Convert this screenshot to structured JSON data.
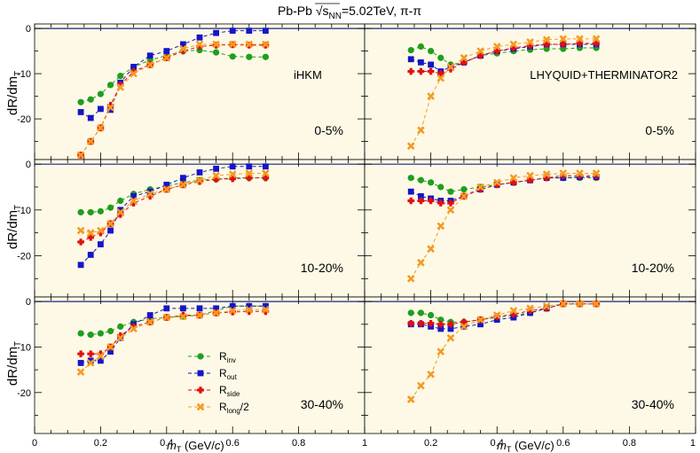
{
  "title_prefix": "Pb-Pb ",
  "title_root": "s",
  "title_root_sub": "NN",
  "title_suffix": "=5.02TeV, π-π",
  "ylabel": "dR/dm",
  "ylabel_sub": "T",
  "xlabel": "m",
  "xlabel_sub": "T",
  "xlabel_unit": " (GeV/",
  "xlabel_unit_c": "c",
  "xlabel_unit_close": ")",
  "x_ticks_left": [
    "0",
    "0.2",
    "0.4",
    "0.6",
    "0.8"
  ],
  "x_ticks_right": [
    "1",
    "0.2",
    "0.4",
    "0.6",
    "0.8",
    "1"
  ],
  "legend": [
    {
      "key": "inv",
      "base": "R",
      "sub": "inv",
      "tail": "",
      "color": "#1f9e1f",
      "marker": "circle"
    },
    {
      "key": "out",
      "base": "R",
      "sub": "out",
      "tail": "",
      "color": "#1515c8",
      "marker": "square"
    },
    {
      "key": "side",
      "base": "R",
      "sub": "side",
      "tail": "",
      "color": "#e01010",
      "marker": "cross"
    },
    {
      "key": "long",
      "base": "R",
      "sub": "long",
      "tail": "/2",
      "color": "#f59a23",
      "marker": "x"
    }
  ],
  "chart_data": [
    {
      "type": "scatter",
      "model": "iHKM",
      "centrality": "0-5%",
      "xlim": [
        0,
        1
      ],
      "ylim": [
        -29,
        1
      ],
      "yticks": [
        0,
        -10,
        -20
      ],
      "x": [
        0.14,
        0.17,
        0.2,
        0.23,
        0.26,
        0.3,
        0.35,
        0.4,
        0.45,
        0.5,
        0.55,
        0.6,
        0.65,
        0.7
      ],
      "series": [
        {
          "name": "R_inv",
          "values": [
            -16.3,
            -15.7,
            -14.5,
            -12.5,
            -10.5,
            -8.5,
            -7.0,
            -6.0,
            -5.0,
            -4.8,
            -5.3,
            -6.2,
            -6.3,
            -6.3
          ]
        },
        {
          "name": "R_out",
          "values": [
            -18.5,
            -19.8,
            -17.8,
            -18.0,
            -12.0,
            -8.5,
            -6.0,
            -5.0,
            -3.5,
            -2.0,
            -1.0,
            -0.5,
            -0.5,
            -0.5
          ]
        },
        {
          "name": "R_side",
          "values": [
            -28.0,
            -25.0,
            -22.0,
            -17.0,
            -12.5,
            -9.5,
            -8.0,
            -6.5,
            -5.0,
            -4.0,
            -3.7,
            -3.6,
            -3.7,
            -3.7
          ]
        },
        {
          "name": "R_long/2",
          "values": [
            -28.0,
            -25.0,
            -22.0,
            -17.5,
            -13.0,
            -10.0,
            -8.0,
            -6.5,
            -4.5,
            -3.5,
            -3.5,
            -3.5,
            -3.5,
            -3.5
          ]
        }
      ]
    },
    {
      "type": "scatter",
      "model": "LHYQUID+THERMINATOR2",
      "centrality": "0-5%",
      "xlim": [
        0,
        1
      ],
      "ylim": [
        -29,
        1
      ],
      "yticks": [],
      "x": [
        0.14,
        0.17,
        0.2,
        0.23,
        0.26,
        0.3,
        0.35,
        0.4,
        0.45,
        0.5,
        0.55,
        0.6,
        0.65,
        0.7
      ],
      "series": [
        {
          "name": "R_inv",
          "values": [
            -4.8,
            -4.0,
            -5.0,
            -6.5,
            -8.0,
            -7.5,
            -6.0,
            -5.5,
            -5.0,
            -4.7,
            -4.5,
            -4.5,
            -4.3,
            -4.3
          ]
        },
        {
          "name": "R_out",
          "values": [
            -6.8,
            -7.5,
            -8.0,
            -9.5,
            -8.5,
            -7.5,
            -6.0,
            -5.0,
            -4.5,
            -4.0,
            -3.5,
            -3.5,
            -3.5,
            -3.5
          ]
        },
        {
          "name": "R_side",
          "values": [
            -9.5,
            -9.5,
            -9.5,
            -10.0,
            -9.0,
            -7.5,
            -6.0,
            -5.0,
            -4.3,
            -3.8,
            -3.5,
            -3.5,
            -3.3,
            -3.3
          ]
        },
        {
          "name": "R_long/2",
          "values": [
            -26.0,
            -22.5,
            -15.0,
            -11.0,
            -8.5,
            -6.5,
            -5.0,
            -4.0,
            -3.5,
            -3.0,
            -2.5,
            -2.3,
            -2.3,
            -2.3
          ]
        }
      ]
    },
    {
      "type": "scatter",
      "centrality": "10-20%",
      "xlim": [
        0,
        1
      ],
      "ylim": [
        -29,
        1
      ],
      "yticks": [
        0,
        -10,
        -20
      ],
      "x": [
        0.14,
        0.17,
        0.2,
        0.23,
        0.26,
        0.3,
        0.35,
        0.4,
        0.45,
        0.5,
        0.55,
        0.6,
        0.65,
        0.7
      ],
      "series": [
        {
          "name": "R_inv",
          "values": [
            -10.5,
            -10.5,
            -10.3,
            -9.5,
            -8.0,
            -6.5,
            -5.5,
            -4.8,
            -4.0,
            -3.5,
            -3.3,
            -3.0,
            -3.0,
            -3.0
          ]
        },
        {
          "name": "R_out",
          "values": [
            -22.0,
            -19.8,
            -17.5,
            -14.5,
            -10.0,
            -7.0,
            -6.0,
            -4.5,
            -3.0,
            -1.8,
            -1.0,
            -0.5,
            -0.5,
            -0.5
          ]
        },
        {
          "name": "R_side",
          "values": [
            -17.0,
            -16.0,
            -15.0,
            -13.0,
            -11.0,
            -8.5,
            -7.0,
            -5.5,
            -4.5,
            -3.8,
            -3.3,
            -3.2,
            -3.0,
            -3.0
          ]
        },
        {
          "name": "R_long/2",
          "values": [
            -14.5,
            -15.0,
            -14.5,
            -13.0,
            -10.5,
            -8.0,
            -6.5,
            -5.5,
            -4.5,
            -3.5,
            -2.5,
            -2.2,
            -2.0,
            -2.0
          ]
        }
      ]
    },
    {
      "type": "scatter",
      "centrality": "10-20%",
      "xlim": [
        0,
        1
      ],
      "ylim": [
        -29,
        1
      ],
      "yticks": [],
      "x": [
        0.14,
        0.17,
        0.2,
        0.23,
        0.26,
        0.3,
        0.35,
        0.4,
        0.45,
        0.5,
        0.55,
        0.6,
        0.65,
        0.7
      ],
      "series": [
        {
          "name": "R_inv",
          "values": [
            -3.0,
            -3.5,
            -4.0,
            -5.0,
            -6.0,
            -5.5,
            -5.0,
            -4.5,
            -4.0,
            -3.5,
            -3.0,
            -3.0,
            -3.0,
            -3.0
          ]
        },
        {
          "name": "R_out",
          "values": [
            -6.0,
            -7.0,
            -7.5,
            -8.0,
            -8.0,
            -7.0,
            -5.5,
            -4.5,
            -4.0,
            -3.5,
            -3.0,
            -3.0,
            -2.8,
            -2.8
          ]
        },
        {
          "name": "R_side",
          "values": [
            -8.0,
            -8.0,
            -8.0,
            -8.5,
            -8.5,
            -7.0,
            -5.5,
            -4.5,
            -4.0,
            -3.5,
            -3.0,
            -2.5,
            -2.5,
            -2.5
          ]
        },
        {
          "name": "R_long/2",
          "values": [
            -25.0,
            -21.5,
            -18.5,
            -13.5,
            -10.0,
            -7.0,
            -5.0,
            -4.0,
            -3.0,
            -2.5,
            -2.2,
            -2.0,
            -2.0,
            -2.0
          ]
        }
      ]
    },
    {
      "type": "scatter",
      "centrality": "30-40%",
      "xlim": [
        0,
        1
      ],
      "ylim": [
        -29,
        1
      ],
      "yticks": [
        0,
        -10,
        -20
      ],
      "x": [
        0.14,
        0.17,
        0.2,
        0.23,
        0.26,
        0.3,
        0.35,
        0.4,
        0.45,
        0.5,
        0.55,
        0.6,
        0.65,
        0.7
      ],
      "series": [
        {
          "name": "R_inv",
          "values": [
            -7.0,
            -7.3,
            -7.0,
            -6.5,
            -5.5,
            -4.5,
            -3.8,
            -3.5,
            -3.3,
            -3.0,
            -2.0,
            -1.0,
            -1.0,
            -1.0
          ]
        },
        {
          "name": "R_out",
          "values": [
            -13.5,
            -13.0,
            -13.0,
            -11.0,
            -8.0,
            -5.0,
            -3.0,
            -1.5,
            -1.5,
            -1.5,
            -1.5,
            -1.0,
            -1.0,
            -1.0
          ]
        },
        {
          "name": "R_side",
          "values": [
            -11.5,
            -11.5,
            -11.5,
            -10.0,
            -7.5,
            -5.5,
            -4.5,
            -3.5,
            -3.0,
            -3.0,
            -2.5,
            -2.3,
            -2.2,
            -2.2
          ]
        },
        {
          "name": "R_long/2",
          "values": [
            -15.5,
            -13.5,
            -12.0,
            -10.0,
            -8.0,
            -6.0,
            -4.5,
            -3.5,
            -3.3,
            -3.0,
            -2.5,
            -2.0,
            -1.8,
            -1.8
          ]
        }
      ]
    },
    {
      "type": "scatter",
      "centrality": "30-40%",
      "xlim": [
        0,
        1
      ],
      "ylim": [
        -29,
        1
      ],
      "yticks": [],
      "x": [
        0.14,
        0.17,
        0.2,
        0.23,
        0.26,
        0.3,
        0.35,
        0.4,
        0.45,
        0.5,
        0.55,
        0.6,
        0.65,
        0.7
      ],
      "series": [
        {
          "name": "R_inv",
          "values": [
            -2.5,
            -2.5,
            -3.0,
            -4.0,
            -4.5,
            -4.5,
            -4.0,
            -3.5,
            -3.0,
            -2.5,
            -1.5,
            -0.5,
            -0.5,
            -0.5
          ]
        },
        {
          "name": "R_out",
          "values": [
            -5.0,
            -5.0,
            -5.5,
            -6.0,
            -6.0,
            -5.5,
            -5.0,
            -4.0,
            -3.5,
            -2.5,
            -1.5,
            -0.5,
            -0.5,
            -0.5
          ]
        },
        {
          "name": "R_side",
          "values": [
            -4.8,
            -4.8,
            -4.8,
            -5.0,
            -5.0,
            -4.5,
            -4.0,
            -3.3,
            -2.8,
            -2.0,
            -1.5,
            -0.5,
            -0.5,
            -0.5
          ]
        },
        {
          "name": "R_long/2",
          "values": [
            -21.5,
            -18.5,
            -16.0,
            -11.0,
            -8.0,
            -5.5,
            -4.0,
            -3.0,
            -2.0,
            -1.5,
            -1.0,
            -0.5,
            -0.5,
            -0.5
          ]
        }
      ]
    }
  ]
}
